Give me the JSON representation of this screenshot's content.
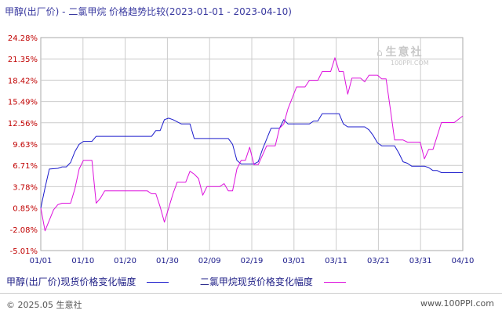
{
  "title": "甲醇(出厂价) - 二氯甲烷 价格趋势比较(2023-01-01 - 2023-04-10)",
  "watermark": {
    "name": "生意社",
    "url": "100PPI.COM"
  },
  "footer": {
    "copyright": "© 2025.05 生意社",
    "url": "www.100PPI.com"
  },
  "colors": {
    "methanol": "#1c1ccc",
    "dcm": "#dd11dd",
    "grid": "#cccccc",
    "tick_y": "#c00000",
    "tick_x": "#1a1a8a"
  },
  "chart_data": {
    "type": "line",
    "title": "甲醇(出厂价) - 二氯甲烷 价格趋势比较(2023-01-01 - 2023-04-10)",
    "x_start": "2023-01-01",
    "x_end": "2023-04-10",
    "xtick_labels": [
      "01/01",
      "01/10",
      "01/20",
      "01/30",
      "02/09",
      "02/19",
      "03/01",
      "03/11",
      "03/21",
      "03/31",
      "04/10"
    ],
    "ytick_labels": [
      "24.28%",
      "21.35%",
      "18.42%",
      "15.49%",
      "12.56%",
      "9.63%",
      "6.71%",
      "3.78%",
      "0.85%",
      "-2.08%",
      "-5.01%"
    ],
    "ylim": [
      -5.01,
      24.28
    ],
    "grid": true,
    "legend_position": "bottom-left",
    "series": [
      {
        "name": "甲醇(出厂价)现货价格变化幅度",
        "color": "#1c1ccc",
        "points": [
          [
            "2023-01-01",
            0.85
          ],
          [
            "2023-01-02",
            3.6
          ],
          [
            "2023-01-03",
            6.2
          ],
          [
            "2023-01-05",
            6.3
          ],
          [
            "2023-01-06",
            6.5
          ],
          [
            "2023-01-07",
            6.5
          ],
          [
            "2023-01-08",
            7.1
          ],
          [
            "2023-01-09",
            8.6
          ],
          [
            "2023-01-10",
            9.6
          ],
          [
            "2023-01-11",
            10.0
          ],
          [
            "2023-01-13",
            10.0
          ],
          [
            "2023-01-14",
            10.7
          ],
          [
            "2023-01-18",
            10.7
          ],
          [
            "2023-01-22",
            10.7
          ],
          [
            "2023-01-27",
            10.7
          ],
          [
            "2023-01-28",
            11.5
          ],
          [
            "2023-01-29",
            11.5
          ],
          [
            "2023-01-30",
            13.0
          ],
          [
            "2023-01-31",
            13.2
          ],
          [
            "2023-02-01",
            13.0
          ],
          [
            "2023-02-03",
            12.4
          ],
          [
            "2023-02-05",
            12.4
          ],
          [
            "2023-02-06",
            10.4
          ],
          [
            "2023-02-09",
            10.4
          ],
          [
            "2023-02-14",
            10.4
          ],
          [
            "2023-02-15",
            9.6
          ],
          [
            "2023-02-16",
            7.4
          ],
          [
            "2023-02-17",
            6.9
          ],
          [
            "2023-02-20",
            6.9
          ],
          [
            "2023-02-21",
            7.2
          ],
          [
            "2023-02-22",
            8.9
          ],
          [
            "2023-02-24",
            11.8
          ],
          [
            "2023-02-26",
            11.8
          ],
          [
            "2023-02-27",
            13.0
          ],
          [
            "2023-02-28",
            12.4
          ],
          [
            "2023-03-01",
            12.4
          ],
          [
            "2023-03-05",
            12.4
          ],
          [
            "2023-03-06",
            12.8
          ],
          [
            "2023-03-07",
            12.8
          ],
          [
            "2023-03-08",
            13.8
          ],
          [
            "2023-03-12",
            13.8
          ],
          [
            "2023-03-13",
            12.4
          ],
          [
            "2023-03-14",
            12.0
          ],
          [
            "2023-03-18",
            12.0
          ],
          [
            "2023-03-19",
            11.6
          ],
          [
            "2023-03-20",
            10.8
          ],
          [
            "2023-03-21",
            9.8
          ],
          [
            "2023-03-22",
            9.4
          ],
          [
            "2023-03-25",
            9.4
          ],
          [
            "2023-03-26",
            8.4
          ],
          [
            "2023-03-27",
            7.2
          ],
          [
            "2023-03-28",
            7.0
          ],
          [
            "2023-03-29",
            6.6
          ],
          [
            "2023-04-01",
            6.6
          ],
          [
            "2023-04-02",
            6.4
          ],
          [
            "2023-04-03",
            6.0
          ],
          [
            "2023-04-04",
            6.0
          ],
          [
            "2023-04-05",
            5.7
          ],
          [
            "2023-04-10",
            5.7
          ]
        ]
      },
      {
        "name": "二氯甲烷现货价格变化幅度",
        "color": "#dd11dd",
        "points": [
          [
            "2023-01-01",
            0.85
          ],
          [
            "2023-01-02",
            -2.3
          ],
          [
            "2023-01-04",
            0.6
          ],
          [
            "2023-01-05",
            1.3
          ],
          [
            "2023-01-06",
            1.5
          ],
          [
            "2023-01-08",
            1.5
          ],
          [
            "2023-01-09",
            3.5
          ],
          [
            "2023-01-10",
            6.2
          ],
          [
            "2023-01-11",
            7.4
          ],
          [
            "2023-01-13",
            7.4
          ],
          [
            "2023-01-14",
            1.5
          ],
          [
            "2023-01-15",
            2.2
          ],
          [
            "2023-01-16",
            3.2
          ],
          [
            "2023-01-18",
            3.2
          ],
          [
            "2023-01-22",
            3.2
          ],
          [
            "2023-01-26",
            3.2
          ],
          [
            "2023-01-27",
            2.8
          ],
          [
            "2023-01-28",
            2.8
          ],
          [
            "2023-01-29",
            1.0
          ],
          [
            "2023-01-30",
            -1.1
          ],
          [
            "2023-02-01",
            2.8
          ],
          [
            "2023-02-02",
            4.4
          ],
          [
            "2023-02-04",
            4.4
          ],
          [
            "2023-02-05",
            5.9
          ],
          [
            "2023-02-06",
            5.5
          ],
          [
            "2023-02-07",
            4.9
          ],
          [
            "2023-02-08",
            2.6
          ],
          [
            "2023-02-09",
            3.8
          ],
          [
            "2023-02-12",
            3.8
          ],
          [
            "2023-02-13",
            4.2
          ],
          [
            "2023-02-14",
            3.2
          ],
          [
            "2023-02-15",
            3.2
          ],
          [
            "2023-02-16",
            6.2
          ],
          [
            "2023-02-17",
            7.4
          ],
          [
            "2023-02-18",
            7.4
          ],
          [
            "2023-02-19",
            9.2
          ],
          [
            "2023-02-20",
            6.8
          ],
          [
            "2023-02-21",
            6.8
          ],
          [
            "2023-02-23",
            9.4
          ],
          [
            "2023-02-25",
            9.4
          ],
          [
            "2023-02-26",
            11.8
          ],
          [
            "2023-02-27",
            12.4
          ],
          [
            "2023-02-28",
            14.5
          ],
          [
            "2023-03-02",
            17.5
          ],
          [
            "2023-03-04",
            17.5
          ],
          [
            "2023-03-05",
            18.4
          ],
          [
            "2023-03-07",
            18.4
          ],
          [
            "2023-03-08",
            19.6
          ],
          [
            "2023-03-10",
            19.6
          ],
          [
            "2023-03-11",
            21.5
          ],
          [
            "2023-03-12",
            19.6
          ],
          [
            "2023-03-13",
            19.6
          ],
          [
            "2023-03-14",
            16.5
          ],
          [
            "2023-03-15",
            18.7
          ],
          [
            "2023-03-17",
            18.7
          ],
          [
            "2023-03-18",
            18.2
          ],
          [
            "2023-03-19",
            19.1
          ],
          [
            "2023-03-21",
            19.1
          ],
          [
            "2023-03-22",
            18.6
          ],
          [
            "2023-03-23",
            18.6
          ],
          [
            "2023-03-24",
            14.5
          ],
          [
            "2023-03-25",
            10.2
          ],
          [
            "2023-03-27",
            10.2
          ],
          [
            "2023-03-28",
            9.9
          ],
          [
            "2023-03-31",
            9.9
          ],
          [
            "2023-04-01",
            7.6
          ],
          [
            "2023-04-02",
            8.9
          ],
          [
            "2023-04-03",
            8.9
          ],
          [
            "2023-04-05",
            12.6
          ],
          [
            "2023-04-08",
            12.6
          ],
          [
            "2023-04-10",
            13.5
          ]
        ]
      }
    ]
  }
}
